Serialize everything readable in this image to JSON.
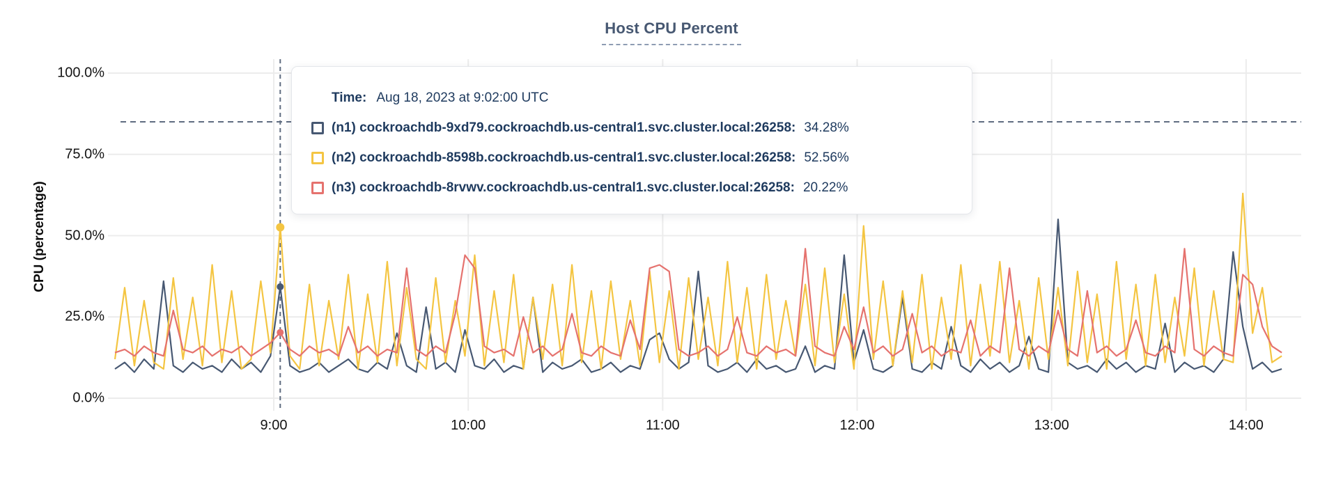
{
  "header": {
    "title": "Host CPU Percent"
  },
  "y_axis": {
    "label": "CPU (percentage)",
    "ticks": [
      {
        "value": 100,
        "label": "100.0%"
      },
      {
        "value": 75,
        "label": "75.0%"
      },
      {
        "value": 50,
        "label": "50.0%"
      },
      {
        "value": 25,
        "label": "25.0%"
      },
      {
        "value": 0,
        "label": "0.0%"
      }
    ]
  },
  "x_axis": {
    "ticks": [
      {
        "minute": 540,
        "label": "9:00"
      },
      {
        "minute": 600,
        "label": "10:00"
      },
      {
        "minute": 660,
        "label": "11:00"
      },
      {
        "minute": 720,
        "label": "12:00"
      },
      {
        "minute": 780,
        "label": "13:00"
      },
      {
        "minute": 840,
        "label": "14:00"
      }
    ]
  },
  "tooltip": {
    "time_label": "Time:",
    "time_value": "Aug 18, 2023 at 9:02:00 UTC",
    "rows": [
      {
        "node": "(n1) cockroachdb-9xd79.cockroachdb.us-central1.svc.cluster.local:26258:",
        "value": "34.28%",
        "color": "#475872"
      },
      {
        "node": "(n2) cockroachdb-8598b.cockroachdb.us-central1.svc.cluster.local:26258:",
        "value": "52.56%",
        "color": "#f4c542"
      },
      {
        "node": "(n3) cockroachdb-8rvwv.cockroachdb.us-central1.svc.cluster.local:26258:",
        "value": "20.22%",
        "color": "#e5726e"
      }
    ]
  },
  "colors": {
    "n1_line": "#475872",
    "n2_line": "#f4c542",
    "n3_line": "#e5726e",
    "text_navy": "#1e3a5e",
    "title_slate": "#475872",
    "gridline": "#ececec",
    "dashed_guide": "#5f6c80"
  },
  "chart_data": {
    "type": "line",
    "title": "Host CPU Percent",
    "xlabel": "",
    "ylabel": "CPU (percentage)",
    "ylim": [
      0,
      100
    ],
    "y_tick_values": [
      100,
      75,
      50,
      25,
      0
    ],
    "grid": true,
    "legend_position": "tooltip-overlay",
    "x_minutes_range": [
      491,
      857
    ],
    "x_tick_minutes": [
      540,
      600,
      660,
      720,
      780,
      840
    ],
    "x_tick_labels": [
      "9:00",
      "10:00",
      "11:00",
      "12:00",
      "13:00",
      "14:00"
    ],
    "threshold_percent": 85,
    "hover": {
      "minute": 542,
      "time_text": "Aug 18, 2023 at 9:02:00 UTC"
    },
    "sample_start_minute": 491,
    "sample_step_minutes": 3,
    "series": [
      {
        "name": "(n1) cockroachdb-9xd79.cockroachdb.us-central1.svc.cluster.local:26258",
        "color": "#475872",
        "hover_value": 34.28,
        "values": [
          9,
          11,
          8,
          12,
          9,
          36,
          10,
          8,
          11,
          9,
          10,
          8,
          12,
          9,
          11,
          8,
          13,
          34.28,
          10,
          8,
          9,
          11,
          8,
          10,
          12,
          9,
          8,
          11,
          9,
          20,
          10,
          8,
          28,
          9,
          11,
          8,
          21,
          10,
          9,
          12,
          8,
          10,
          9,
          31,
          8,
          11,
          9,
          10,
          12,
          8,
          9,
          11,
          8,
          10,
          9,
          18,
          20,
          12,
          9,
          11,
          39,
          10,
          8,
          9,
          11,
          8,
          12,
          9,
          10,
          8,
          9,
          16,
          8,
          10,
          9,
          44,
          11,
          21,
          9,
          8,
          10,
          31,
          9,
          8,
          11,
          9,
          22,
          10,
          8,
          12,
          9,
          11,
          8,
          10,
          19,
          9,
          8,
          55,
          11,
          9,
          10,
          8,
          12,
          9,
          11,
          8,
          10,
          9,
          23,
          8,
          11,
          9,
          10,
          8,
          12,
          45,
          22,
          9,
          11,
          8,
          9
        ]
      },
      {
        "name": "(n2) cockroachdb-8598b.cockroachdb.us-central1.svc.cluster.local:26258",
        "color": "#f4c542",
        "hover_value": 52.56,
        "values": [
          12,
          34,
          10,
          30,
          11,
          9,
          37,
          12,
          31,
          10,
          41,
          11,
          33,
          9,
          12,
          36,
          14,
          52.56,
          13,
          9,
          35,
          10,
          30,
          12,
          38,
          9,
          32,
          11,
          42,
          10,
          34,
          12,
          9,
          37,
          11,
          30,
          13,
          44,
          10,
          33,
          11,
          38,
          9,
          31,
          12,
          35,
          10,
          41,
          11,
          33,
          9,
          36,
          12,
          30,
          10,
          39,
          11,
          33,
          9,
          37,
          12,
          31,
          10,
          42,
          11,
          34,
          9,
          38,
          12,
          30,
          13,
          35,
          10,
          40,
          11,
          32,
          9,
          53,
          12,
          36,
          10,
          33,
          11,
          38,
          9,
          31,
          12,
          41,
          10,
          35,
          13,
          42,
          11,
          30,
          9,
          37,
          12,
          34,
          10,
          39,
          11,
          32,
          9,
          42,
          12,
          35,
          10,
          38,
          11,
          31,
          13,
          40,
          10,
          33,
          12,
          11,
          63,
          20,
          34,
          11,
          13
        ]
      },
      {
        "name": "(n3) cockroachdb-8rvwv.cockroachdb.us-central1.svc.cluster.local:26258",
        "color": "#e5726e",
        "hover_value": 20.22,
        "values": [
          14,
          15,
          13,
          16,
          14,
          13,
          27,
          15,
          14,
          16,
          13,
          15,
          14,
          16,
          13,
          15,
          17,
          20.22,
          15,
          13,
          16,
          14,
          15,
          13,
          22,
          14,
          16,
          13,
          15,
          14,
          40,
          15,
          13,
          16,
          14,
          26,
          44,
          40,
          16,
          14,
          15,
          13,
          25,
          14,
          16,
          13,
          15,
          26,
          14,
          13,
          16,
          14,
          13,
          24,
          15,
          40,
          41,
          39,
          15,
          13,
          14,
          16,
          13,
          15,
          25,
          14,
          13,
          16,
          14,
          15,
          13,
          46,
          16,
          14,
          13,
          22,
          15,
          28,
          14,
          16,
          13,
          15,
          26,
          14,
          16,
          13,
          15,
          14,
          24,
          13,
          16,
          14,
          40,
          15,
          13,
          16,
          14,
          27,
          15,
          13,
          33,
          14,
          16,
          13,
          15,
          24,
          14,
          13,
          16,
          14,
          46,
          15,
          13,
          16,
          14,
          13,
          38,
          35,
          22,
          16,
          14
        ]
      }
    ]
  }
}
